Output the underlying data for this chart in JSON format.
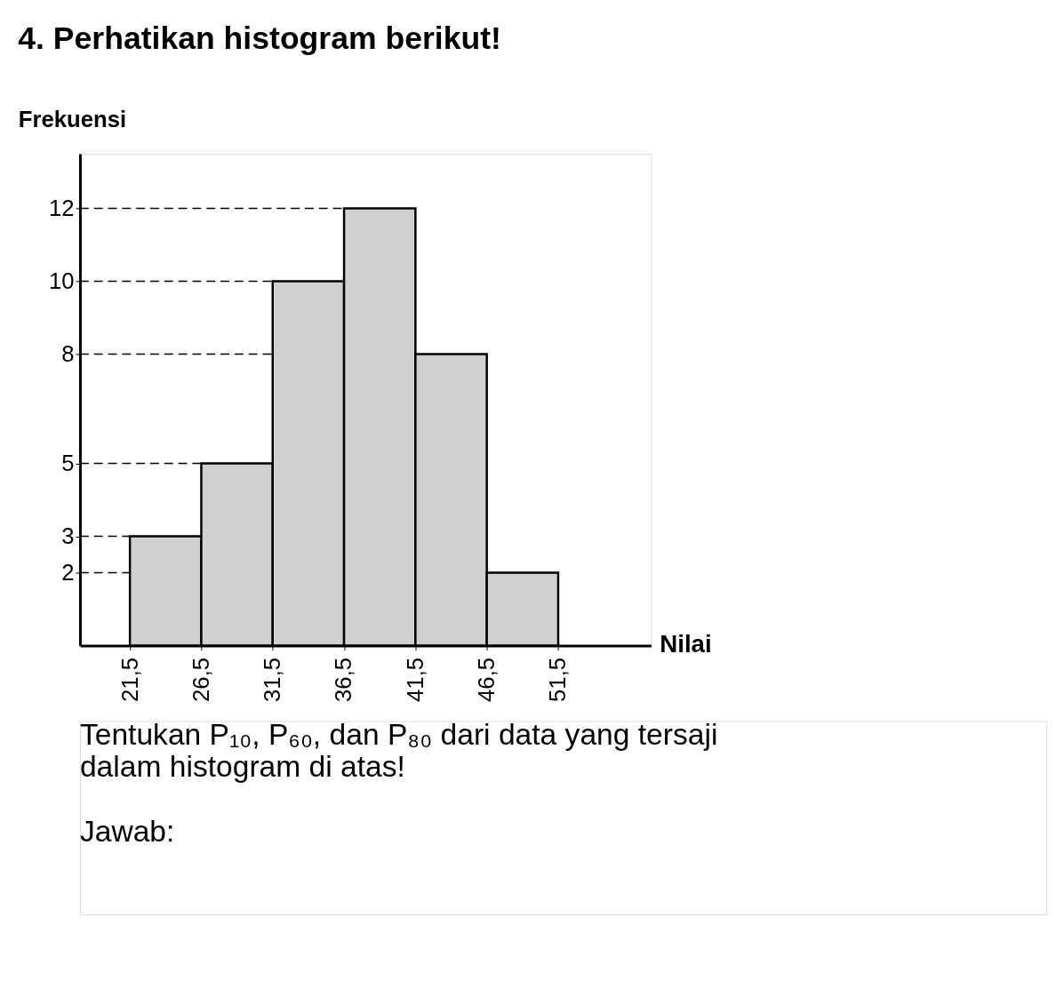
{
  "chart_data": {
    "type": "histogram",
    "title": "4. Perhatikan histogram berikut!",
    "xlabel": "Nilai",
    "ylabel": "Frekuensi",
    "bins": [
      21.5,
      26.5,
      31.5,
      36.5,
      41.5,
      46.5,
      51.5
    ],
    "values": [
      3,
      5,
      10,
      12,
      8,
      2
    ],
    "color": "#d0d0d0",
    "xlim": [
      18,
      58
    ],
    "ylim": [
      0,
      13.5
    ],
    "xticks": [
      {
        "value": 21.5,
        "label": "21,5"
      },
      {
        "value": 26.5,
        "label": "26,5"
      },
      {
        "value": 31.5,
        "label": "31,5"
      },
      {
        "value": 36.5,
        "label": "36,5"
      },
      {
        "value": 41.5,
        "label": "41,5"
      },
      {
        "value": 46.5,
        "label": "46,5"
      },
      {
        "value": 51.5,
        "label": "51,5"
      }
    ],
    "yticks": [
      2,
      3,
      5,
      8,
      10,
      12
    ],
    "grid": false,
    "ref_lines": [
      {
        "axis": "y",
        "value": 12,
        "line_style": "dashed"
      },
      {
        "axis": "y",
        "value": 10,
        "line_style": "dashed"
      },
      {
        "axis": "y",
        "value": 8,
        "line_style": "dashed"
      },
      {
        "axis": "y",
        "value": 5,
        "line_style": "dashed"
      },
      {
        "axis": "y",
        "value": 3,
        "line_style": "dashed"
      },
      {
        "axis": "y",
        "value": 2,
        "line_style": "dashed"
      }
    ],
    "annotations": [
      "Tentukan P₁₀, P₆₀, dan P₈₀ dari data yang tersaji dalam histogram di atas!",
      "Jawab:"
    ]
  }
}
